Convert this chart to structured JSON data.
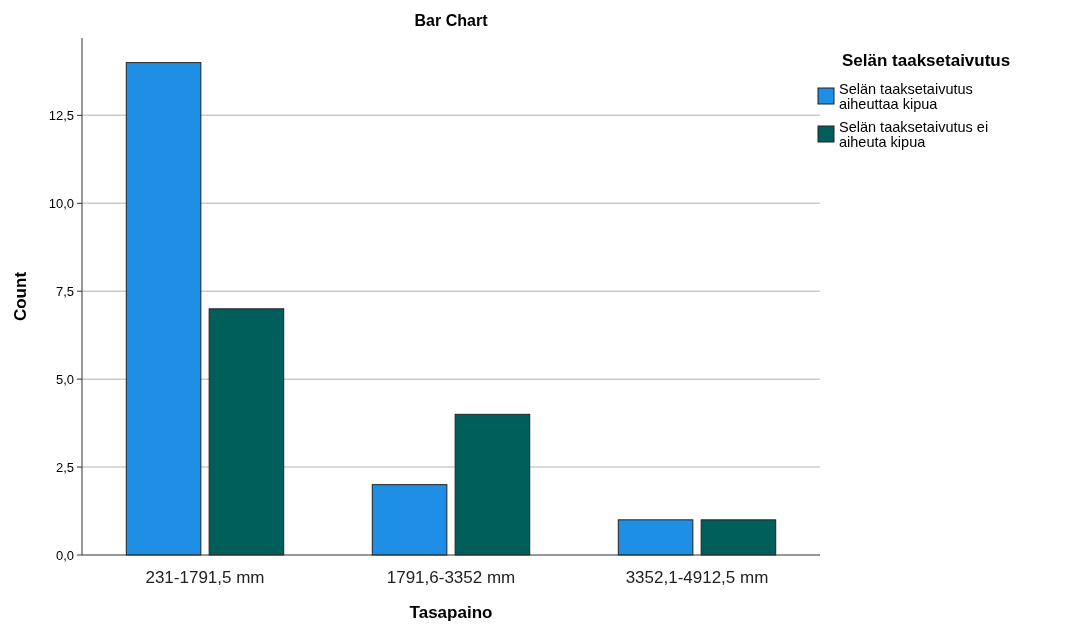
{
  "chart_data": {
    "type": "bar",
    "title": "Bar Chart",
    "xlabel": "Tasapaino",
    "ylabel": "Count",
    "legend_title": "Selän taaksetaivutus",
    "categories": [
      "231-1791,5 mm",
      "1791,6-3352 mm",
      "3352,1-4912,5 mm"
    ],
    "series": [
      {
        "name": "Selän taaksetaivutus aiheuttaa kipua",
        "color": "#1e8fe4",
        "values": [
          14,
          2,
          1
        ]
      },
      {
        "name": "Selän taaksetaivutus ei aiheuta kipua",
        "color": "#005f5b",
        "values": [
          7,
          4,
          1
        ]
      }
    ],
    "ylim": [
      0,
      14.7
    ],
    "yticks": [
      {
        "value": 0,
        "label": "0,0"
      },
      {
        "value": 2.5,
        "label": "2,5"
      },
      {
        "value": 5,
        "label": "5,0"
      },
      {
        "value": 7.5,
        "label": "7,5"
      },
      {
        "value": 10,
        "label": "10,0"
      },
      {
        "value": 12.5,
        "label": "12,5"
      }
    ],
    "grid": "y",
    "legend": "right"
  }
}
